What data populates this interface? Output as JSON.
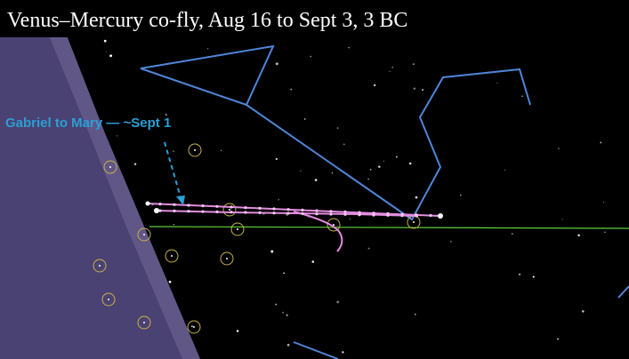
{
  "title": "Venus–Mercury co-fly, Aug 16 to Sept 3, 3 BC",
  "annotation": "Gabriel to Mary — ~Sept 1"
}
